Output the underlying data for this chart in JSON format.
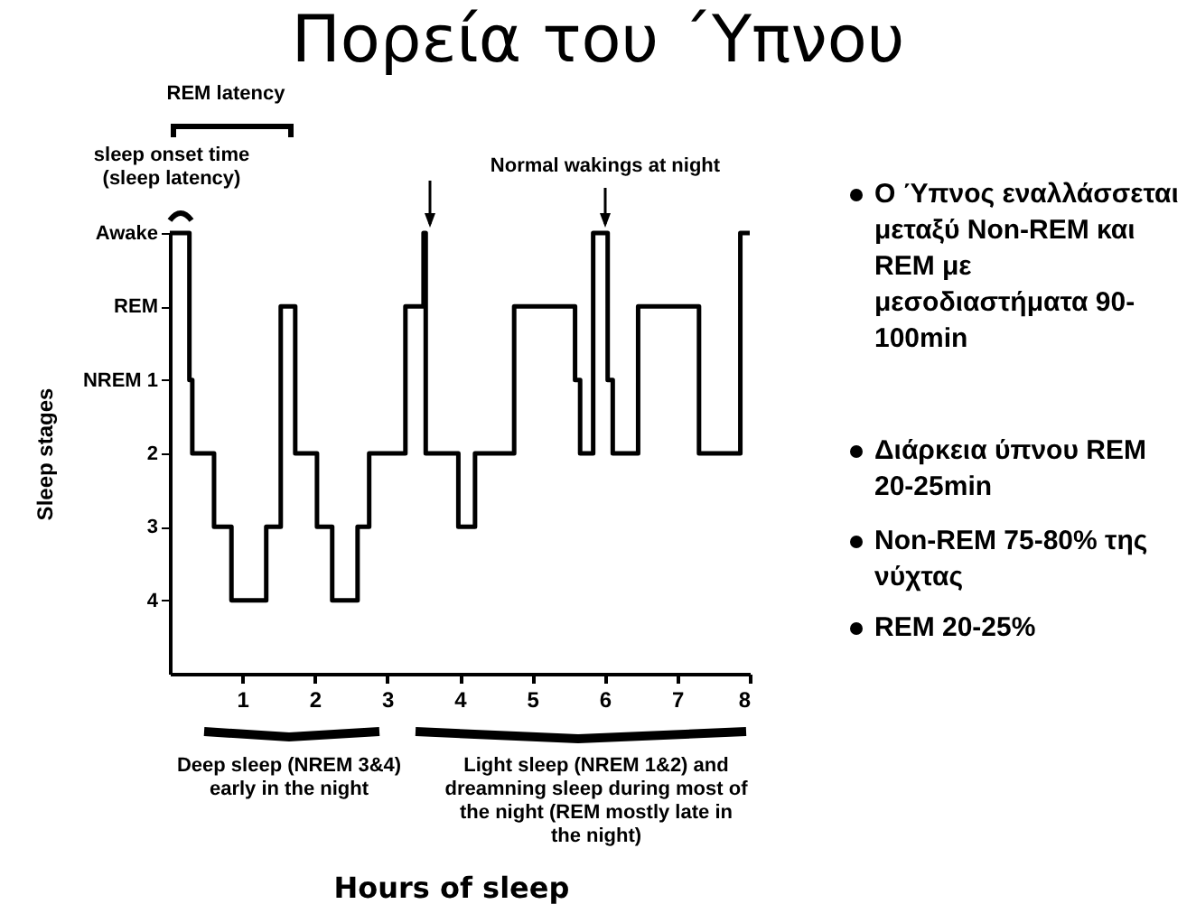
{
  "chart_data": {
    "type": "step",
    "title": "Πορεία του ΄Υπνου",
    "ylabel": "Sleep stages",
    "x": [
      0,
      0.27,
      0.31,
      0.61,
      0.85,
      1.33,
      1.53,
      1.73,
      2.03,
      2.24,
      2.59,
      2.75,
      3.25,
      3.5,
      3.53,
      3.98,
      4.21,
      4.75,
      5.59,
      5.66,
      5.84,
      6.04,
      6.11,
      6.46,
      7.3,
      7.87,
      8
    ],
    "series": [
      {
        "color": "#000000",
        "values": [
          -1,
          1,
          2,
          3,
          4,
          3,
          0,
          2,
          3,
          4,
          3,
          2,
          0,
          -1,
          2,
          3,
          2,
          0,
          1,
          2,
          -1,
          1,
          2,
          0,
          2,
          -1,
          -1
        ]
      }
    ],
    "xlim": [
      0,
      8
    ],
    "xticks": [
      1,
      2,
      3,
      4,
      5,
      6,
      7,
      8
    ],
    "ylim": [
      5,
      -1
    ],
    "yticks": [
      {
        "value": -1,
        "label": "Awake"
      },
      {
        "value": 0,
        "label": "REM"
      },
      {
        "value": 1,
        "label": "NREM 1"
      },
      2,
      3,
      4
    ],
    "grid": false,
    "marker": "none",
    "line_style": "solid",
    "annotations": [
      "REM latency",
      "sleep onset time (sleep latency)",
      "Normal wakings at night",
      "Deep sleep (NREM 3&4) early in the night",
      "Light sleep (NREM 1&2) and dreamning sleep during most of the night (REM mostly late in the night)",
      "Ο Ύπνος εναλλάσσεται μεταξύ Non-REM και REM με μεσοδιαστήματα 90-100min",
      "Διάρκεια ύπνου REM 20-25min",
      "Non-REM 75-80% της νύχτας",
      "REM 20-25%",
      "Hours of sleep"
    ]
  }
}
